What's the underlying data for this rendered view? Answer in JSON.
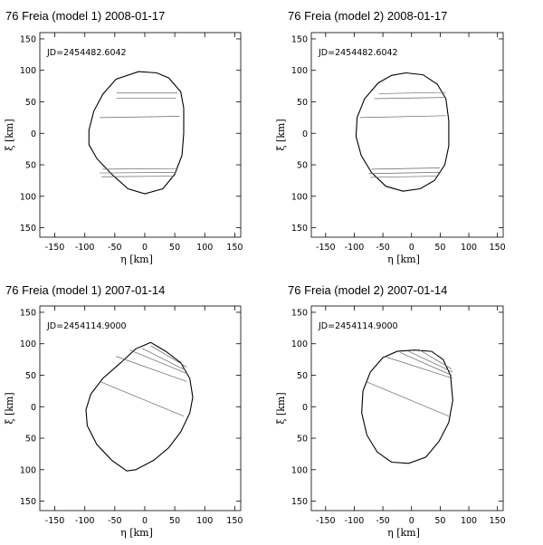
{
  "chart_data": [
    {
      "type": "scatter",
      "title": "76 Freia  (model 1)  2008-01-17",
      "annotation": "JD=2454482.6042",
      "xlabel": "η  [km]",
      "ylabel": "ξ  [km]",
      "xlim": [
        -175,
        160
      ],
      "ylim": [
        -165,
        160
      ],
      "xticks": [
        "-150",
        "-100",
        "-50",
        "0",
        "50",
        "100",
        "150"
      ],
      "yticks": [
        "150",
        "100",
        "50",
        "0",
        "50",
        "100",
        "150"
      ],
      "outline": [
        [
          -10,
          98
        ],
        [
          20,
          96
        ],
        [
          40,
          88
        ],
        [
          60,
          66
        ],
        [
          65,
          40
        ],
        [
          65,
          0
        ],
        [
          62,
          -35
        ],
        [
          50,
          -65
        ],
        [
          30,
          -88
        ],
        [
          0,
          -96
        ],
        [
          -28,
          -88
        ],
        [
          -55,
          -65
        ],
        [
          -80,
          -40
        ],
        [
          -93,
          -18
        ],
        [
          -93,
          5
        ],
        [
          -85,
          35
        ],
        [
          -70,
          62
        ],
        [
          -48,
          86
        ]
      ],
      "chords": [
        [
          [
            -47,
            64
          ],
          [
            55,
            64
          ]
        ],
        [
          [
            -47,
            56
          ],
          [
            52,
            56
          ]
        ],
        [
          [
            -75,
            25
          ],
          [
            58,
            27
          ]
        ],
        [
          [
            -70,
            -57
          ],
          [
            55,
            -56
          ]
        ],
        [
          [
            -75,
            -63
          ],
          [
            52,
            -62
          ]
        ],
        [
          [
            -72,
            -69
          ],
          [
            50,
            -68
          ]
        ]
      ]
    },
    {
      "type": "scatter",
      "title": "76 Freia  (model 2)  2008-01-17",
      "annotation": "JD=2454482.6042",
      "xlabel": "η  [km]",
      "ylabel": "ξ  [km]",
      "xlim": [
        -175,
        160
      ],
      "ylim": [
        -165,
        160
      ],
      "xticks": [
        "-150",
        "-100",
        "-50",
        "0",
        "50",
        "100",
        "150"
      ],
      "yticks": [
        "150",
        "100",
        "50",
        "0",
        "50",
        "100",
        "150"
      ],
      "outline": [
        [
          -10,
          96
        ],
        [
          20,
          93
        ],
        [
          45,
          78
        ],
        [
          60,
          55
        ],
        [
          65,
          20
        ],
        [
          65,
          -20
        ],
        [
          58,
          -50
        ],
        [
          40,
          -75
        ],
        [
          15,
          -88
        ],
        [
          -15,
          -92
        ],
        [
          -45,
          -84
        ],
        [
          -70,
          -62
        ],
        [
          -88,
          -35
        ],
        [
          -97,
          -5
        ],
        [
          -95,
          25
        ],
        [
          -82,
          55
        ],
        [
          -58,
          80
        ],
        [
          -35,
          92
        ]
      ],
      "chords": [
        [
          [
            -57,
            63
          ],
          [
            60,
            65
          ]
        ],
        [
          [
            -65,
            55
          ],
          [
            60,
            57
          ]
        ],
        [
          [
            -90,
            25
          ],
          [
            60,
            28
          ]
        ],
        [
          [
            -70,
            -57
          ],
          [
            50,
            -55
          ]
        ],
        [
          [
            -75,
            -64
          ],
          [
            48,
            -62
          ]
        ],
        [
          [
            -72,
            -70
          ],
          [
            45,
            -68
          ]
        ]
      ]
    },
    {
      "type": "scatter",
      "title": "76 Freia  (model 1)  2007-01-14",
      "annotation": "JD=2454114.9000",
      "xlabel": "η  [km]",
      "ylabel": "ξ  [km]",
      "xlim": [
        -175,
        160
      ],
      "ylim": [
        -165,
        160
      ],
      "xticks": [
        "-150",
        "-100",
        "-50",
        "0",
        "50",
        "100",
        "150"
      ],
      "yticks": [
        "150",
        "100",
        "50",
        "0",
        "50",
        "100",
        "150"
      ],
      "outline": [
        [
          10,
          102
        ],
        [
          35,
          88
        ],
        [
          60,
          70
        ],
        [
          75,
          45
        ],
        [
          80,
          15
        ],
        [
          75,
          -10
        ],
        [
          60,
          -40
        ],
        [
          40,
          -65
        ],
        [
          15,
          -85
        ],
        [
          -15,
          -100
        ],
        [
          -30,
          -102
        ],
        [
          -55,
          -85
        ],
        [
          -80,
          -60
        ],
        [
          -96,
          -30
        ],
        [
          -98,
          -5
        ],
        [
          -90,
          20
        ],
        [
          -70,
          45
        ],
        [
          -40,
          70
        ],
        [
          -15,
          92
        ]
      ],
      "chords": [
        [
          [
            -48,
            80
          ],
          [
            70,
            40
          ]
        ],
        [
          [
            -25,
            90
          ],
          [
            72,
            52
          ]
        ],
        [
          [
            -5,
            93
          ],
          [
            68,
            58
          ]
        ],
        [
          [
            10,
            97
          ],
          [
            70,
            63
          ]
        ],
        [
          [
            -75,
            40
          ],
          [
            65,
            -15
          ]
        ]
      ]
    },
    {
      "type": "scatter",
      "title": "76 Freia  (model 2)  2007-01-14",
      "annotation": "JD=2454114.9000",
      "xlabel": "η  [km]",
      "ylabel": "ξ  [km]",
      "xlim": [
        -175,
        160
      ],
      "ylim": [
        -165,
        160
      ],
      "xticks": [
        "-150",
        "-100",
        "-50",
        "0",
        "50",
        "100",
        "150"
      ],
      "yticks": [
        "150",
        "100",
        "50",
        "0",
        "50",
        "100",
        "150"
      ],
      "outline": [
        [
          5,
          90
        ],
        [
          35,
          88
        ],
        [
          55,
          75
        ],
        [
          68,
          50
        ],
        [
          72,
          10
        ],
        [
          65,
          -25
        ],
        [
          48,
          -55
        ],
        [
          25,
          -80
        ],
        [
          -5,
          -90
        ],
        [
          -35,
          -88
        ],
        [
          -60,
          -72
        ],
        [
          -78,
          -45
        ],
        [
          -87,
          -10
        ],
        [
          -85,
          25
        ],
        [
          -72,
          55
        ],
        [
          -50,
          78
        ],
        [
          -25,
          88
        ]
      ],
      "chords": [
        [
          [
            -48,
            80
          ],
          [
            72,
            45
          ]
        ],
        [
          [
            -20,
            86
          ],
          [
            70,
            50
          ]
        ],
        [
          [
            -5,
            88
          ],
          [
            72,
            55
          ]
        ],
        [
          [
            12,
            91
          ],
          [
            70,
            60
          ]
        ],
        [
          [
            -80,
            40
          ],
          [
            65,
            -15
          ]
        ]
      ]
    }
  ]
}
